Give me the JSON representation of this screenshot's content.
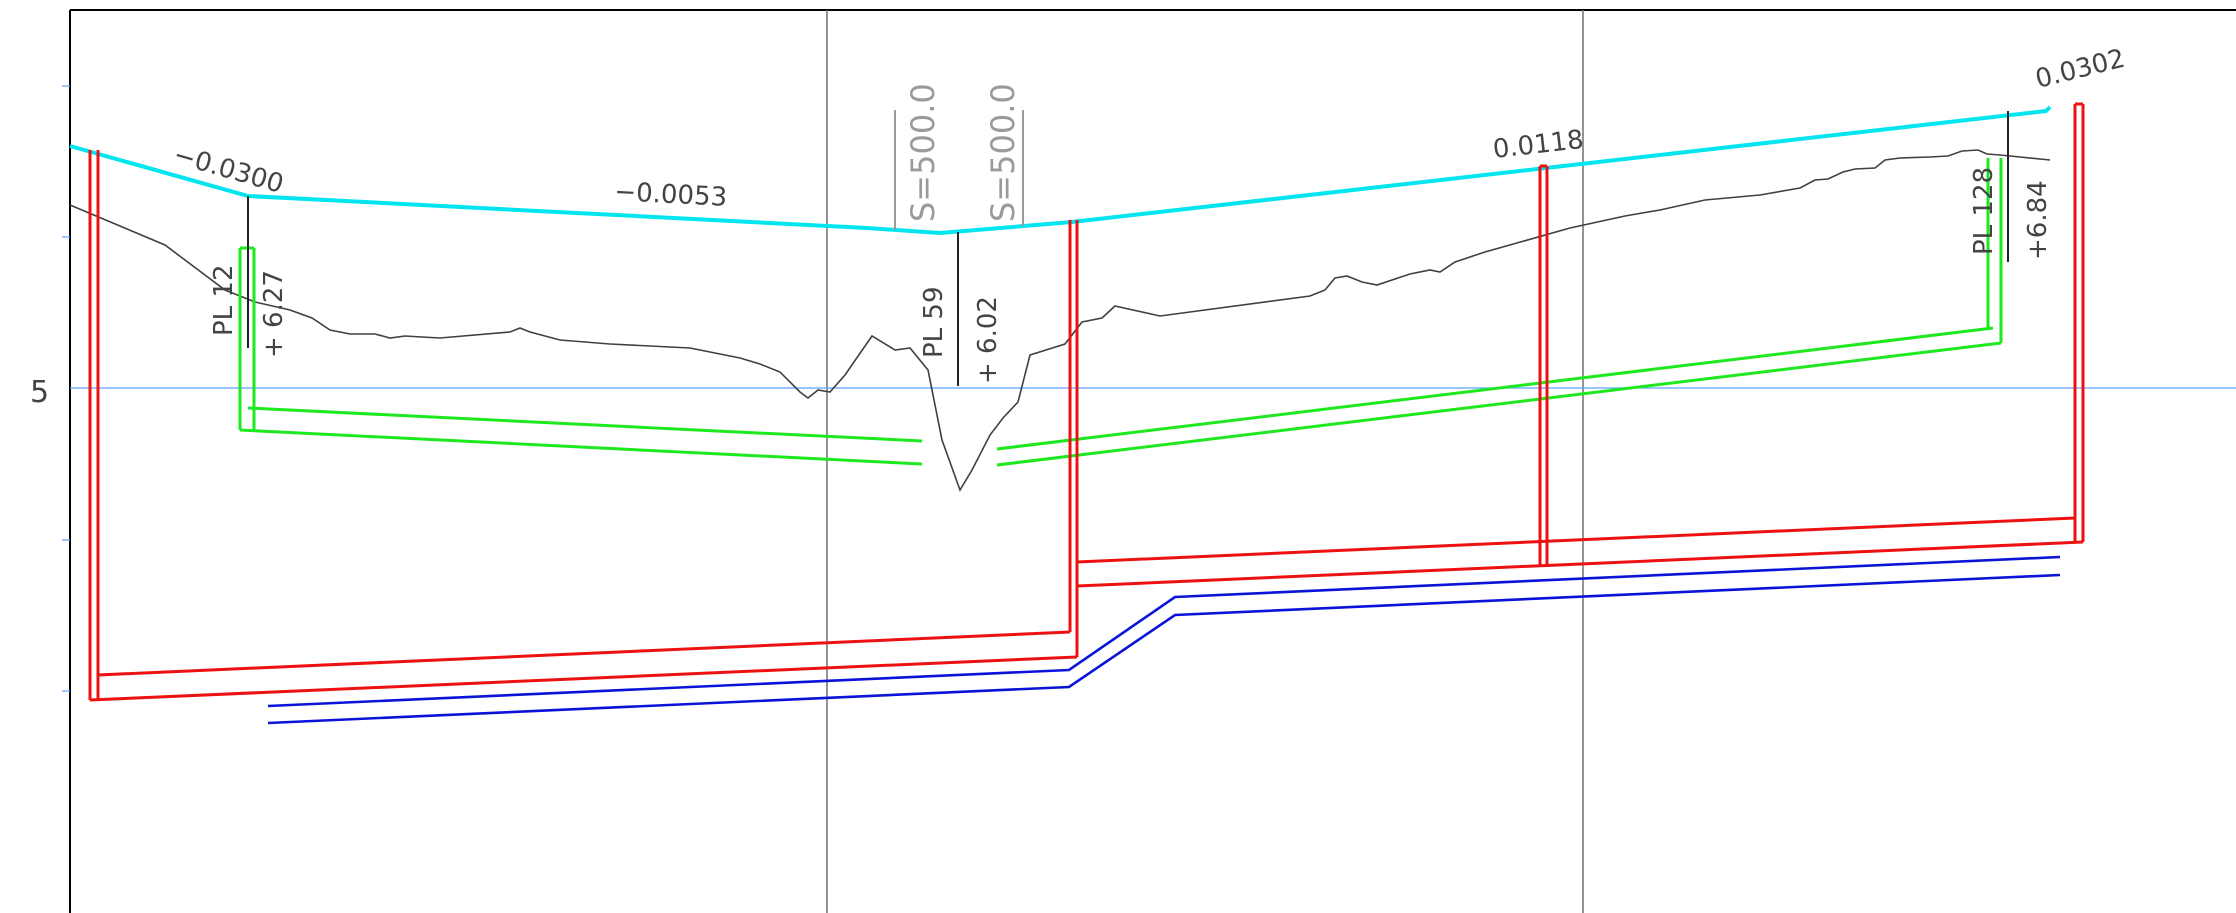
{
  "axis": {
    "y_tick_label": "5"
  },
  "grade_labels": [
    "−0.0300",
    "−0.0053",
    "0.0118",
    "0.0302"
  ],
  "vertical_curve_labels": [
    "S=500.0",
    "S=500.0"
  ],
  "pvi_labels": [
    {
      "name": "PL 12",
      "offset": "+ 6.27"
    },
    {
      "name": "PL 59",
      "offset": "+ 6.02"
    },
    {
      "name": "PL 128",
      "offset": "+6.84"
    }
  ],
  "colors": {
    "design_grade": "#00e5ee",
    "ground": "#404040",
    "green_pipe": "#1ee81e",
    "red_pipe": "#ee1111",
    "blue_pipe": "#0a14d8",
    "gridline": "#707070",
    "elevation_line": "#5aa0ff"
  }
}
